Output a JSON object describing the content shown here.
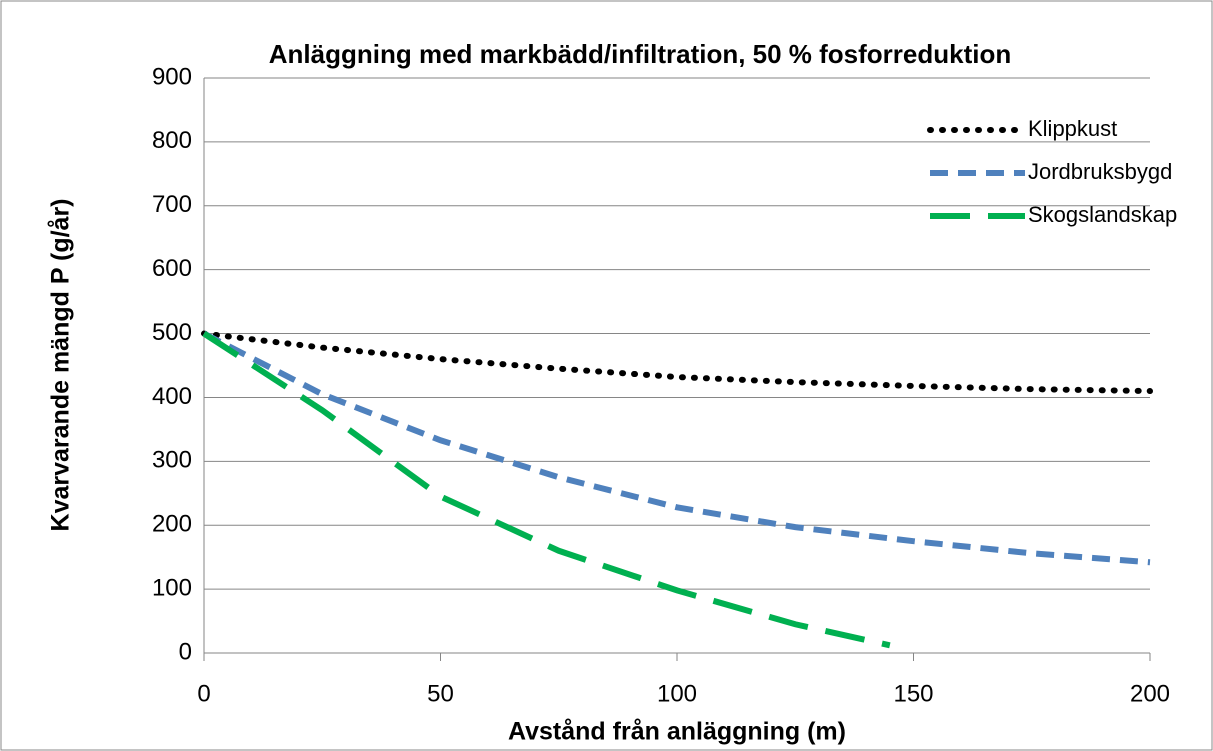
{
  "chart_data": {
    "type": "line",
    "title": "Anläggning med markbädd/infiltration, 50 % fosforreduktion",
    "x_label": "Avstånd från anläggning (m)",
    "y_label": "Kvarvarande mängd P (g/år)",
    "xlim": [
      0,
      200
    ],
    "xticks": [
      0,
      50,
      100,
      150,
      200
    ],
    "ylim": [
      0,
      900
    ],
    "yticks": [
      0,
      100,
      200,
      300,
      400,
      500,
      600,
      700,
      800,
      900
    ],
    "grid": true,
    "legend": "top-right",
    "series": [
      {
        "name": "Klippkust",
        "color": "#000000",
        "dash": "dot",
        "x": [
          0,
          25,
          50,
          75,
          100,
          125,
          150,
          175,
          200
        ],
        "values": [
          500,
          478,
          460,
          445,
          432,
          424,
          418,
          413,
          410
        ]
      },
      {
        "name": "Jordbruksbygd",
        "color": "#4f81bd",
        "dash": "dash",
        "x": [
          0,
          25,
          50,
          75,
          100,
          125,
          150,
          175,
          200
        ],
        "values": [
          500,
          405,
          333,
          275,
          228,
          197,
          175,
          156,
          142
        ]
      },
      {
        "name": "Skogslandskap",
        "color": "#00b050",
        "dash": "longdash",
        "x": [
          0,
          25,
          50,
          75,
          100,
          125,
          145
        ],
        "values": [
          500,
          380,
          245,
          160,
          98,
          45,
          12
        ]
      }
    ]
  }
}
